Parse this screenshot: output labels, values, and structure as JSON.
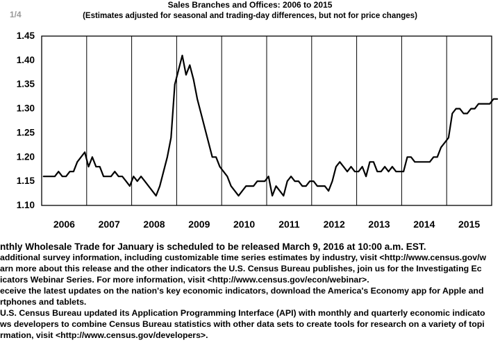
{
  "header": {
    "page_counter": "1/4",
    "title": "Sales Branches and Offices: 2006 to 2015",
    "subtitle": "(Estimates adjusted for seasonal and trading-day differences, but not for price changes)"
  },
  "chart_data": {
    "type": "line",
    "title": "Sales Branches and Offices: 2006 to 2015",
    "subtitle": "(Estimates adjusted for seasonal and trading-day differences, but not for price changes)",
    "xlabel": "",
    "ylabel": "",
    "ylim": [
      1.1,
      1.45
    ],
    "yticks": [
      "1.10",
      "1.15",
      "1.20",
      "1.25",
      "1.30",
      "1.35",
      "1.40",
      "1.45"
    ],
    "year_labels": [
      "2006",
      "2007",
      "2008",
      "2009",
      "2010",
      "2011",
      "2012",
      "2013",
      "2014",
      "2015"
    ],
    "grid": "vertical year separators",
    "legend": "none",
    "line_color": "#000000",
    "series": [
      {
        "values": [
          1.16,
          1.16,
          1.16,
          1.16,
          1.17,
          1.16,
          1.16,
          1.17,
          1.17,
          1.19,
          1.2,
          1.21,
          1.18,
          1.2,
          1.18,
          1.18,
          1.16,
          1.16,
          1.16,
          1.17,
          1.16,
          1.16,
          1.15,
          1.14,
          1.16,
          1.15,
          1.16,
          1.15,
          1.14,
          1.13,
          1.12,
          1.14,
          1.17,
          1.2,
          1.24,
          1.35,
          1.38,
          1.41,
          1.37,
          1.39,
          1.36,
          1.32,
          1.29,
          1.26,
          1.23,
          1.2,
          1.2,
          1.18,
          1.17,
          1.16,
          1.14,
          1.13,
          1.12,
          1.13,
          1.14,
          1.14,
          1.14,
          1.15,
          1.15,
          1.15,
          1.16,
          1.12,
          1.14,
          1.13,
          1.12,
          1.15,
          1.16,
          1.15,
          1.15,
          1.14,
          1.14,
          1.15,
          1.15,
          1.14,
          1.14,
          1.14,
          1.13,
          1.15,
          1.18,
          1.19,
          1.18,
          1.17,
          1.18,
          1.17,
          1.17,
          1.18,
          1.16,
          1.19,
          1.19,
          1.17,
          1.17,
          1.18,
          1.17,
          1.18,
          1.17,
          1.17,
          1.17,
          1.2,
          1.2,
          1.19,
          1.19,
          1.19,
          1.19,
          1.19,
          1.2,
          1.2,
          1.22,
          1.23,
          1.24,
          1.29,
          1.3,
          1.3,
          1.29,
          1.29,
          1.3,
          1.3,
          1.31,
          1.31,
          1.31,
          1.31,
          1.32,
          1.32
        ]
      }
    ]
  },
  "notes": {
    "lines": [
      "nthly Wholesale Trade for January is scheduled to be released March 9, 2016 at 10:00 a.m. EST.",
      "additional survey information, including customizable time series estimates by industry, visit <http://www.census.gov/w",
      "arn more about this release and the other indicators the U.S. Census Bureau publishes, join us for the Investigating Ec",
      "icators Webinar Series.  For more information, visit <http://www.census.gov/econ/webinar>.",
      "eceive the latest updates on the nation's key economic indicators, download the America's Economy app for Apple and",
      "rtphones and tablets.",
      "U.S. Census Bureau updated its Application Programming Interface (API) with monthly and quarterly economic indicato",
      "ws developers to combine Census Bureau statistics with other data sets to create tools for research on a variety of topi",
      "rmation, visit <http://www.census.gov/developers>."
    ]
  }
}
